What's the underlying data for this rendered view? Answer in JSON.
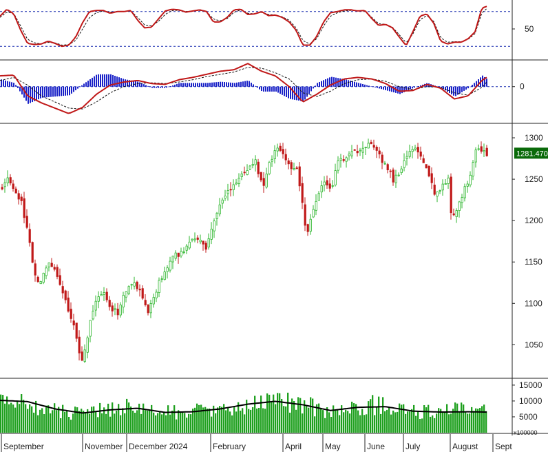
{
  "chart_data": [
    {
      "type": "line",
      "panel": "oscillator",
      "series": [
        {
          "x": [
            0,
            10,
            20,
            30,
            40,
            50,
            60,
            70,
            80,
            90,
            100,
            110,
            120,
            130,
            140,
            150,
            160,
            170,
            180,
            190,
            200,
            210,
            220,
            230,
            240,
            250,
            260,
            270,
            280,
            290,
            300,
            310,
            320,
            330,
            340,
            350,
            360,
            370,
            380,
            390,
            400,
            410,
            420,
            430,
            440,
            450,
            460,
            470,
            480,
            490,
            500,
            510,
            520,
            530,
            540,
            550,
            560,
            570,
            580,
            590,
            600,
            610,
            620,
            630,
            640,
            650,
            660,
            670,
            680,
            690,
            700,
            707
          ],
          "values": [
            72,
            84,
            76,
            48,
            25,
            23,
            24,
            29,
            25,
            20,
            22,
            36,
            61,
            80,
            82,
            82,
            77,
            80,
            80,
            82,
            65,
            52,
            53,
            67,
            81,
            84,
            83,
            79,
            81,
            83,
            80,
            62,
            62,
            70,
            83,
            84,
            75,
            76,
            80,
            73,
            74,
            70,
            62,
            48,
            22,
            22,
            37,
            62,
            78,
            80,
            83,
            83,
            81,
            82,
            68,
            56,
            58,
            52,
            36,
            21,
            46,
            72,
            76,
            60,
            29,
            24,
            27,
            27,
            33,
            45,
            86,
            89
          ]
        },
        {
          "x": [
            0,
            10,
            20,
            30,
            40,
            50,
            60,
            70,
            80,
            90,
            100,
            110,
            120,
            130,
            140,
            150,
            160,
            170,
            180,
            190,
            200,
            210,
            220,
            230,
            240,
            250,
            260,
            270,
            280,
            290,
            300,
            310,
            320,
            330,
            340,
            350,
            360,
            370,
            380,
            390,
            400,
            410,
            420,
            430,
            440,
            450,
            460,
            470,
            480,
            490,
            500,
            510,
            520,
            530,
            540,
            550,
            560,
            570,
            580,
            590,
            600,
            610,
            620,
            630,
            640,
            650,
            660,
            670,
            680,
            690,
            700,
            707
          ],
          "values": [
            70,
            79,
            77,
            55,
            32,
            26,
            24,
            27,
            26,
            22,
            23,
            30,
            50,
            70,
            78,
            81,
            79,
            80,
            80,
            81,
            70,
            57,
            55,
            63,
            75,
            82,
            82,
            80,
            81,
            82,
            80,
            67,
            64,
            68,
            79,
            83,
            77,
            76,
            79,
            75,
            74,
            71,
            65,
            52,
            30,
            24,
            33,
            55,
            72,
            78,
            81,
            82,
            81,
            81,
            70,
            59,
            58,
            53,
            40,
            26,
            42,
            66,
            73,
            63,
            35,
            27,
            28,
            28,
            32,
            42,
            78,
            85
          ]
        }
      ],
      "yticks": [
        50
      ],
      "reference_lines": [
        80,
        20
      ],
      "ylim": [
        0,
        100
      ]
    },
    {
      "type": "line",
      "panel": "macd",
      "series": [
        {
          "x": [
            0,
            20,
            40,
            60,
            80,
            100,
            120,
            140,
            160,
            180,
            200,
            220,
            240,
            260,
            280,
            300,
            320,
            340,
            360,
            380,
            400,
            420,
            440,
            460,
            480,
            500,
            520,
            540,
            560,
            580,
            600,
            620,
            640,
            660,
            680,
            700,
            707
          ],
          "values": [
            1.4,
            1.5,
            -1.2,
            -2.1,
            -2.8,
            -3.5,
            -2.7,
            -1.0,
            0.2,
            0.6,
            0.8,
            0.4,
            0.3,
            0.9,
            1.2,
            1.6,
            2.0,
            2.2,
            3.0,
            2.0,
            1.4,
            0.0,
            -2.0,
            -1.0,
            0.2,
            1.0,
            1.2,
            1.0,
            0.4,
            -0.6,
            -0.5,
            0.3,
            -0.2,
            -1.6,
            -1.2,
            0.8,
            1.2
          ]
        },
        {
          "x": [
            0,
            20,
            40,
            60,
            80,
            100,
            120,
            140,
            160,
            180,
            200,
            220,
            240,
            260,
            280,
            300,
            320,
            340,
            360,
            380,
            400,
            420,
            440,
            460,
            480,
            500,
            520,
            540,
            560,
            580,
            600,
            620,
            640,
            660,
            680,
            700,
            707
          ],
          "values": [
            0.8,
            1.2,
            0.2,
            -1.2,
            -2.0,
            -2.8,
            -2.9,
            -2.0,
            -0.8,
            0.0,
            0.4,
            0.5,
            0.4,
            0.6,
            0.9,
            1.3,
            1.6,
            1.9,
            2.5,
            2.4,
            1.8,
            1.0,
            -0.8,
            -1.3,
            -0.6,
            0.4,
            0.9,
            1.0,
            0.7,
            0.0,
            -0.4,
            0.0,
            -0.1,
            -0.8,
            -1.1,
            -0.1,
            0.6
          ]
        }
      ],
      "yticks": [
        0
      ],
      "ylim": [
        -4.5,
        3.2
      ]
    },
    {
      "type": "candlestick",
      "panel": "price",
      "last_price": "1281.470",
      "yticks": [
        1050,
        1100,
        1150,
        1200,
        1250,
        1300
      ],
      "ylim": [
        1012,
        1315
      ],
      "anchor_x": [
        0,
        10,
        20,
        30,
        40,
        48,
        55,
        60,
        70,
        80,
        90,
        100,
        108,
        115,
        120,
        130,
        140,
        150,
        160,
        170,
        180,
        190,
        200,
        210,
        215,
        220,
        230,
        240,
        250,
        260,
        270,
        280,
        290,
        300,
        305,
        320,
        335,
        350,
        360,
        370,
        380,
        390,
        400,
        405,
        420,
        430,
        440,
        445,
        450,
        460,
        470,
        480,
        490,
        500,
        510,
        520,
        530,
        540,
        550,
        560,
        570,
        580,
        590,
        600,
        610,
        620,
        630,
        640,
        650,
        655,
        660,
        670,
        680,
        690,
        700,
        707
      ],
      "anchor_close": [
        1240,
        1248,
        1235,
        1220,
        1185,
        1140,
        1125,
        1130,
        1150,
        1142,
        1110,
        1090,
        1070,
        1035,
        1030,
        1080,
        1105,
        1110,
        1095,
        1090,
        1110,
        1122,
        1120,
        1100,
        1085,
        1105,
        1125,
        1140,
        1155,
        1160,
        1170,
        1180,
        1175,
        1165,
        1190,
        1220,
        1240,
        1255,
        1265,
        1270,
        1240,
        1270,
        1285,
        1290,
        1265,
        1260,
        1210,
        1180,
        1200,
        1230,
        1245,
        1240,
        1270,
        1275,
        1280,
        1285,
        1290,
        1295,
        1280,
        1265,
        1250,
        1260,
        1275,
        1290,
        1280,
        1260,
        1230,
        1240,
        1250,
        1195,
        1210,
        1230,
        1250,
        1285,
        1283,
        1281
      ]
    },
    {
      "type": "bar",
      "panel": "volume",
      "unit": "x100000",
      "yticks": [
        5000,
        10000,
        15000
      ],
      "ylim": [
        0,
        16500
      ],
      "series": [
        {
          "x": [
            0,
            30,
            60,
            90,
            120,
            150,
            180,
            210,
            240,
            270,
            300,
            330,
            360,
            390,
            420,
            450,
            480,
            510,
            540,
            570,
            600,
            630,
            660,
            690,
            707
          ],
          "values": [
            9500,
            9000,
            7500,
            6500,
            5500,
            7500,
            7800,
            7000,
            6200,
            6400,
            6800,
            6600,
            8000,
            10000,
            9000,
            8200,
            6200,
            7500,
            8500,
            7600,
            6500,
            6200,
            7000,
            6500,
            6500
          ]
        },
        {
          "x": [
            0,
            40,
            80,
            120,
            160,
            200,
            240,
            280,
            320,
            360,
            400,
            440,
            480,
            520,
            560,
            600,
            640,
            680,
            707
          ],
          "values": [
            10200,
            9800,
            7500,
            6200,
            7200,
            7700,
            6400,
            6600,
            7500,
            9000,
            9900,
            8800,
            7000,
            8000,
            8200,
            6800,
            6500,
            6600,
            6500
          ]
        }
      ]
    }
  ],
  "x_axis": {
    "labels": [
      "September",
      "November",
      "December 2024",
      "February",
      "April",
      "May",
      "June",
      "July",
      "August",
      "Sept"
    ]
  }
}
